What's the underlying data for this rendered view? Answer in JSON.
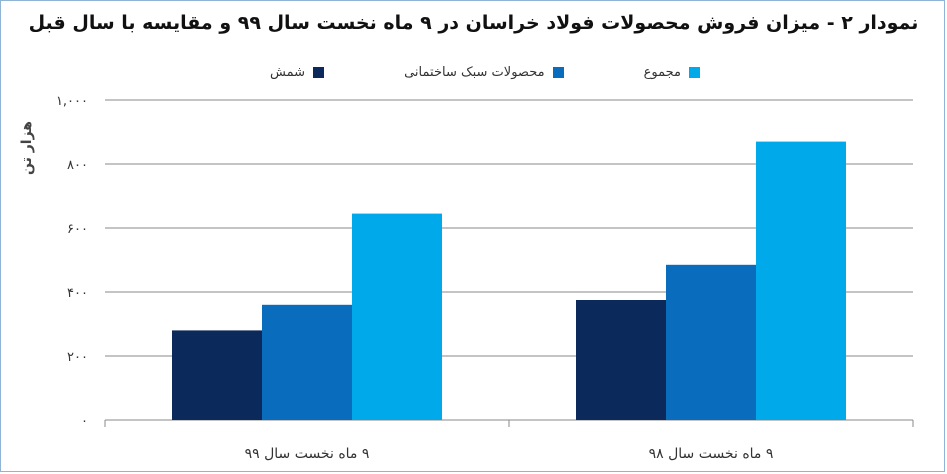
{
  "chart_data": {
    "type": "bar",
    "title": "نمودار ۲ - میزان فروش محصولات فولاد خراسان در ۹ ماه نخست سال ۹۹ و مقایسه با سال قبل",
    "ylabel": "هزار تن",
    "xlabel": "",
    "ylim": [
      0,
      1000
    ],
    "yticks": [
      0,
      200,
      400,
      600,
      800,
      1000
    ],
    "ytick_labels": [
      "۰",
      "۲۰۰",
      "۴۰۰",
      "۶۰۰",
      "۸۰۰",
      "۱,۰۰۰"
    ],
    "categories": [
      "۹ ماه نخست سال ۹۹",
      "۹ ماه نخست سال ۹۸"
    ],
    "series": [
      {
        "name": "شمش",
        "color": "#0b2a5b",
        "values": [
          280,
          375
        ]
      },
      {
        "name": "محصولات سبک ساختمانی",
        "color": "#0a6cbd",
        "values": [
          360,
          485
        ]
      },
      {
        "name": "مجموع",
        "color": "#00a9ea",
        "values": [
          645,
          870
        ]
      }
    ],
    "grid": true,
    "legend_position": "top"
  }
}
